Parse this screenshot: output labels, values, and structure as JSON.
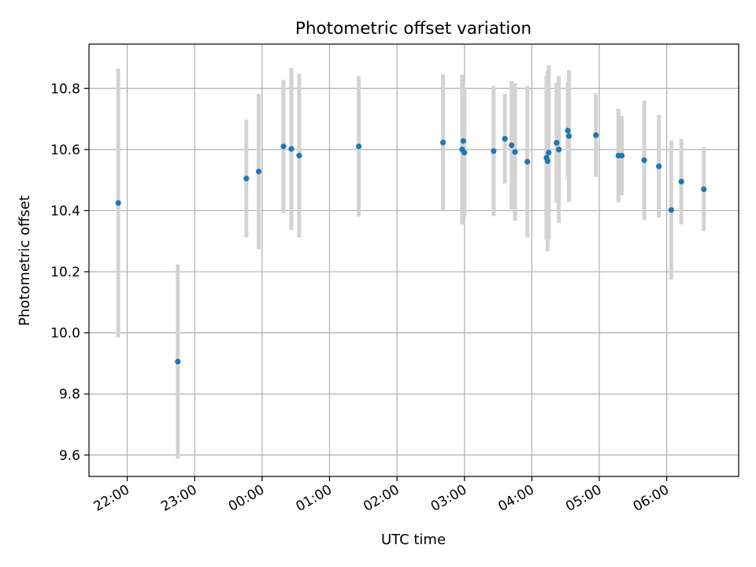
{
  "chart_data": {
    "type": "scatter",
    "title": "Photometric offset variation",
    "xlabel": "UTC time",
    "ylabel": "Photometric offset",
    "xlim": [
      "21:26",
      "07:04"
    ],
    "ylim": [
      9.53,
      10.945
    ],
    "grid": true,
    "x_ticks": [
      "22:00",
      "23:00",
      "00:00",
      "01:00",
      "02:00",
      "03:00",
      "04:00",
      "05:00",
      "06:00"
    ],
    "y_ticks": [
      9.6,
      9.8,
      10.0,
      10.2,
      10.4,
      10.6,
      10.8
    ],
    "x_tick_labels": [
      "22:00",
      "23:00",
      "00:00",
      "01:00",
      "02:00",
      "03:00",
      "04:00",
      "05:00",
      "06:00"
    ],
    "y_tick_labels": [
      "9.6",
      "9.8",
      "10.0",
      "10.2",
      "10.4",
      "10.6",
      "10.8"
    ],
    "point_color": "#1f77b4",
    "errorbar_color": "#d3d3d3",
    "series": [
      {
        "points": [
          {
            "x": "21:52",
            "y": 10.425,
            "yerr": 0.44
          },
          {
            "x": "22:45",
            "y": 9.906,
            "yerr": 0.318
          },
          {
            "x": "23:46",
            "y": 10.505,
            "yerr": 0.193
          },
          {
            "x": "23:57",
            "y": 10.528,
            "yerr": 0.254
          },
          {
            "x": "00:19",
            "y": 10.61,
            "yerr": 0.218
          },
          {
            "x": "00:26",
            "y": 10.602,
            "yerr": 0.265
          },
          {
            "x": "00:33",
            "y": 10.58,
            "yerr": 0.268
          },
          {
            "x": "01:26",
            "y": 10.61,
            "yerr": 0.23
          },
          {
            "x": "02:41",
            "y": 10.623,
            "yerr": 0.222
          },
          {
            "x": "02:58",
            "y": 10.6,
            "yerr": 0.245
          },
          {
            "x": "02:59",
            "y": 10.628,
            "yerr": 0.185
          },
          {
            "x": "03:00",
            "y": 10.59,
            "yerr": 0.21
          },
          {
            "x": "03:26",
            "y": 10.595,
            "yerr": 0.213
          },
          {
            "x": "03:36",
            "y": 10.635,
            "yerr": 0.147
          },
          {
            "x": "03:42",
            "y": 10.614,
            "yerr": 0.21
          },
          {
            "x": "03:45",
            "y": 10.592,
            "yerr": 0.225
          },
          {
            "x": "03:56",
            "y": 10.56,
            "yerr": 0.248
          },
          {
            "x": "04:13",
            "y": 10.573,
            "yerr": 0.268
          },
          {
            "x": "04:14",
            "y": 10.562,
            "yerr": 0.295
          },
          {
            "x": "04:15",
            "y": 10.59,
            "yerr": 0.285
          },
          {
            "x": "04:22",
            "y": 10.622,
            "yerr": 0.196
          },
          {
            "x": "04:24",
            "y": 10.6,
            "yerr": 0.24
          },
          {
            "x": "04:32",
            "y": 10.662,
            "yerr": 0.16
          },
          {
            "x": "04:33",
            "y": 10.644,
            "yerr": 0.216
          },
          {
            "x": "04:57",
            "y": 10.647,
            "yerr": 0.137
          },
          {
            "x": "05:17",
            "y": 10.58,
            "yerr": 0.153
          },
          {
            "x": "05:20",
            "y": 10.58,
            "yerr": 0.13
          },
          {
            "x": "05:40",
            "y": 10.565,
            "yerr": 0.195
          },
          {
            "x": "05:53",
            "y": 10.545,
            "yerr": 0.168
          },
          {
            "x": "06:04",
            "y": 10.402,
            "yerr": 0.228
          },
          {
            "x": "06:13",
            "y": 10.495,
            "yerr": 0.14
          },
          {
            "x": "06:33",
            "y": 10.47,
            "yerr": 0.137
          }
        ]
      }
    ]
  }
}
